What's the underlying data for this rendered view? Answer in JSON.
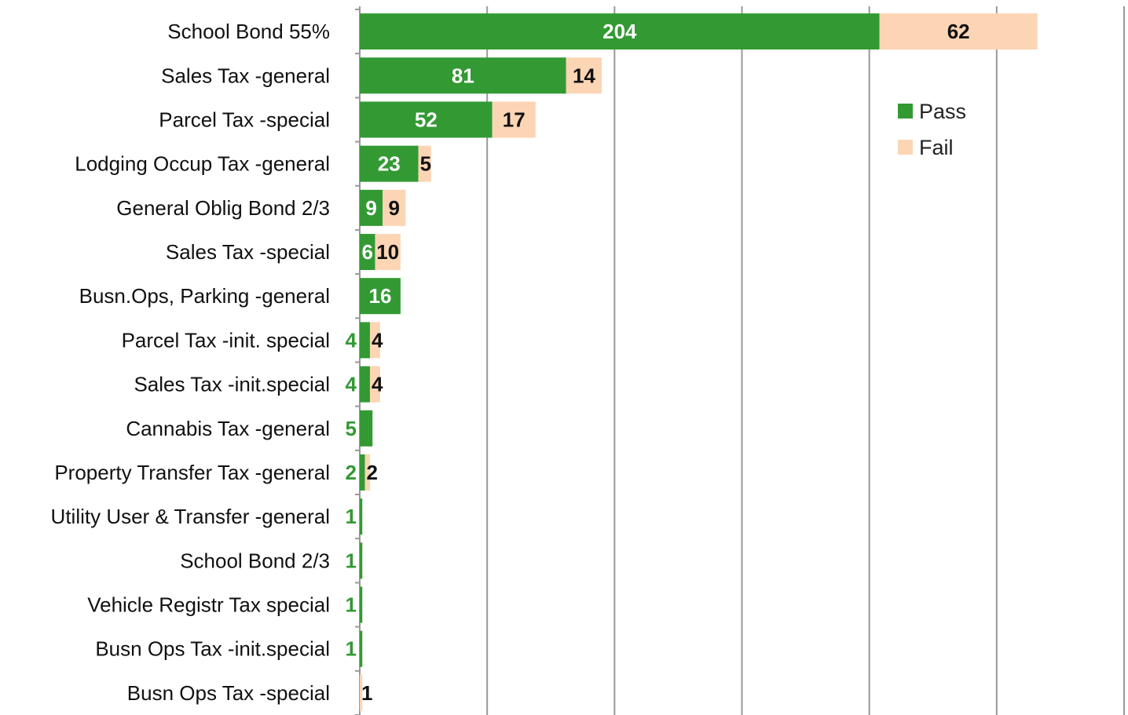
{
  "chart_data": {
    "type": "stacked_barh",
    "categories": [
      "School Bond 55%",
      "Sales Tax -general",
      "Parcel Tax -special",
      "Lodging Occup Tax -general",
      "General Oblig Bond 2/3",
      "Sales Tax -special",
      "Busn.Ops, Parking -general",
      "Parcel Tax -init. special",
      "Sales Tax -init.special",
      "Cannabis Tax -general",
      "Property Transfer Tax -general",
      "Utility User & Transfer -general",
      "School Bond 2/3",
      "Vehicle Registr Tax special",
      "Busn Ops Tax -init.special",
      "Busn Ops Tax -special"
    ],
    "series": [
      {
        "name": "Pass",
        "color": "#339933",
        "values": [
          204,
          81,
          52,
          23,
          9,
          6,
          16,
          4,
          4,
          5,
          2,
          1,
          1,
          1,
          1,
          null
        ]
      },
      {
        "name": "Fail",
        "color": "#fcd5b5",
        "values": [
          62,
          14,
          17,
          5,
          9,
          10,
          null,
          4,
          4,
          null,
          2,
          null,
          null,
          null,
          null,
          1
        ]
      }
    ],
    "xlim": [
      0,
      300
    ],
    "xticks": [
      0,
      50,
      100,
      150,
      200,
      250,
      300
    ],
    "grid": true,
    "legend": "upper right"
  }
}
